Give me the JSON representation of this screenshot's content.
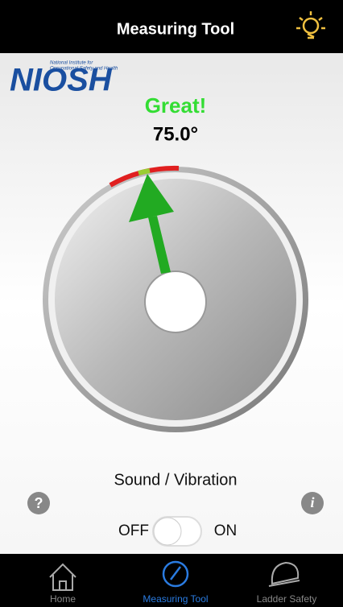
{
  "header": {
    "title": "Measuring Tool"
  },
  "logo": {
    "name": "NIOSH",
    "subtitle_line1": "National Institute for",
    "subtitle_line2": "Occupational Safety and Health"
  },
  "reading": {
    "status": "Great!",
    "angle": "75.0°"
  },
  "settings": {
    "label": "Sound / Vibration",
    "off": "OFF",
    "on": "ON",
    "help_icon": "?",
    "info_icon": "i"
  },
  "tabs": [
    "Home",
    "Measuring Tool",
    "Ladder Safety"
  ]
}
